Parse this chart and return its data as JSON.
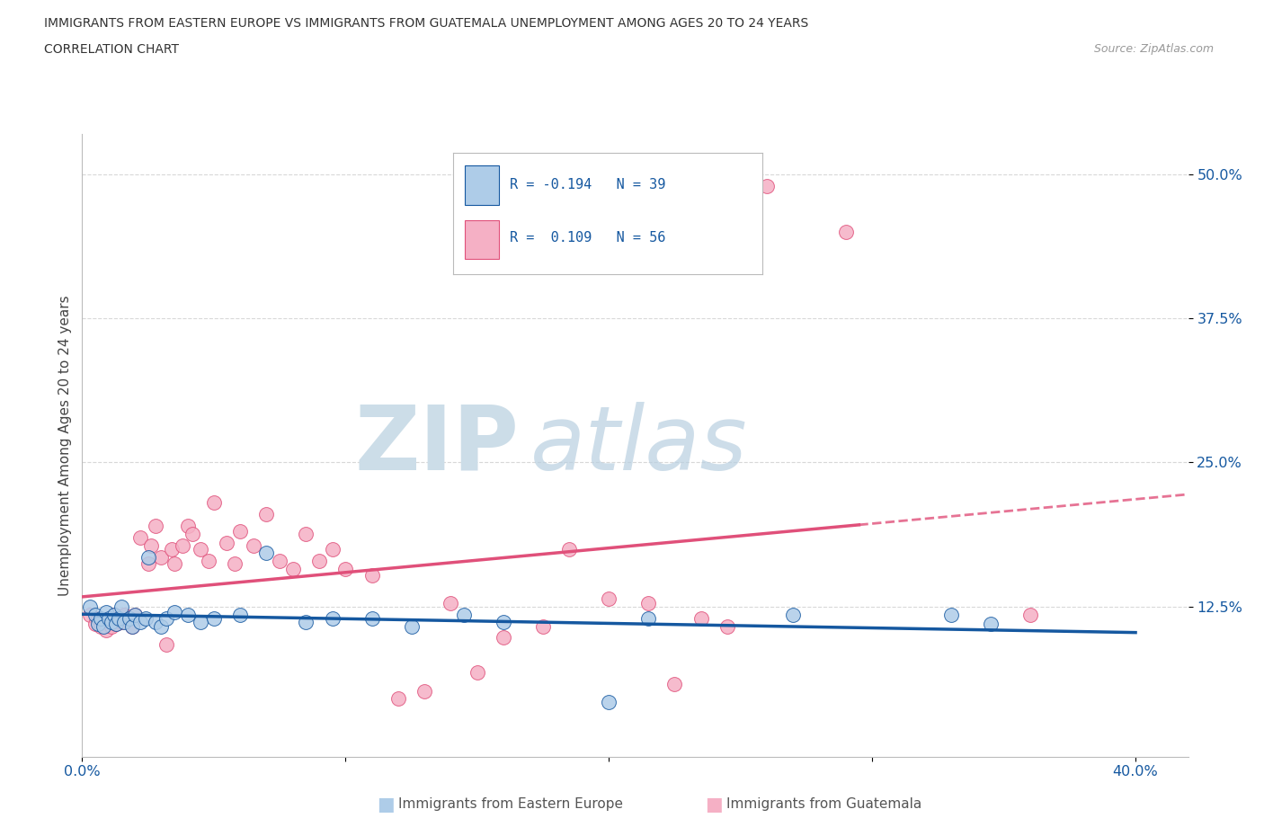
{
  "title_line1": "IMMIGRANTS FROM EASTERN EUROPE VS IMMIGRANTS FROM GUATEMALA UNEMPLOYMENT AMONG AGES 20 TO 24 YEARS",
  "title_line2": "CORRELATION CHART",
  "source": "Source: ZipAtlas.com",
  "ylabel": "Unemployment Among Ages 20 to 24 years",
  "xlim": [
    0.0,
    0.42
  ],
  "ylim": [
    -0.005,
    0.535
  ],
  "r_eastern": -0.194,
  "n_eastern": 39,
  "r_guatemala": 0.109,
  "n_guatemala": 56,
  "color_eastern": "#aecce8",
  "color_guatemala": "#f5b0c5",
  "line_color_eastern": "#1558a0",
  "line_color_guatemala": "#e0507a",
  "background_color": "#ffffff",
  "grid_color": "#d8d8d8",
  "eastern_x": [
    0.003,
    0.005,
    0.006,
    0.007,
    0.008,
    0.009,
    0.01,
    0.011,
    0.012,
    0.013,
    0.014,
    0.015,
    0.016,
    0.018,
    0.019,
    0.02,
    0.022,
    0.024,
    0.025,
    0.028,
    0.03,
    0.032,
    0.035,
    0.04,
    0.045,
    0.05,
    0.06,
    0.07,
    0.085,
    0.095,
    0.11,
    0.125,
    0.145,
    0.16,
    0.2,
    0.215,
    0.27,
    0.33,
    0.345
  ],
  "eastern_y": [
    0.125,
    0.118,
    0.11,
    0.115,
    0.108,
    0.12,
    0.115,
    0.112,
    0.118,
    0.11,
    0.115,
    0.125,
    0.112,
    0.115,
    0.108,
    0.118,
    0.112,
    0.115,
    0.168,
    0.112,
    0.108,
    0.115,
    0.12,
    0.118,
    0.112,
    0.115,
    0.118,
    0.172,
    0.112,
    0.115,
    0.115,
    0.108,
    0.118,
    0.112,
    0.042,
    0.115,
    0.118,
    0.118,
    0.11
  ],
  "guatemala_x": [
    0.003,
    0.005,
    0.006,
    0.007,
    0.008,
    0.009,
    0.01,
    0.011,
    0.012,
    0.013,
    0.015,
    0.016,
    0.018,
    0.019,
    0.02,
    0.022,
    0.025,
    0.026,
    0.028,
    0.03,
    0.032,
    0.034,
    0.035,
    0.038,
    0.04,
    0.042,
    0.045,
    0.048,
    0.05,
    0.055,
    0.058,
    0.06,
    0.065,
    0.07,
    0.075,
    0.08,
    0.085,
    0.09,
    0.095,
    0.1,
    0.11,
    0.12,
    0.13,
    0.14,
    0.15,
    0.16,
    0.175,
    0.185,
    0.2,
    0.215,
    0.225,
    0.235,
    0.245,
    0.26,
    0.29,
    0.36
  ],
  "guatemala_y": [
    0.118,
    0.11,
    0.115,
    0.108,
    0.112,
    0.105,
    0.115,
    0.108,
    0.118,
    0.11,
    0.112,
    0.118,
    0.115,
    0.108,
    0.118,
    0.185,
    0.162,
    0.178,
    0.195,
    0.168,
    0.092,
    0.175,
    0.162,
    0.178,
    0.195,
    0.188,
    0.175,
    0.165,
    0.215,
    0.18,
    0.162,
    0.19,
    0.178,
    0.205,
    0.165,
    0.158,
    0.188,
    0.165,
    0.175,
    0.158,
    0.152,
    0.045,
    0.052,
    0.128,
    0.068,
    0.098,
    0.108,
    0.175,
    0.132,
    0.128,
    0.058,
    0.115,
    0.108,
    0.49,
    0.45,
    0.118
  ],
  "trend_x_start": 0.0,
  "trend_x_end_eastern": 0.4,
  "trend_x_end_guatemala_solid": 0.295,
  "trend_x_end_guatemala_dash": 0.42
}
